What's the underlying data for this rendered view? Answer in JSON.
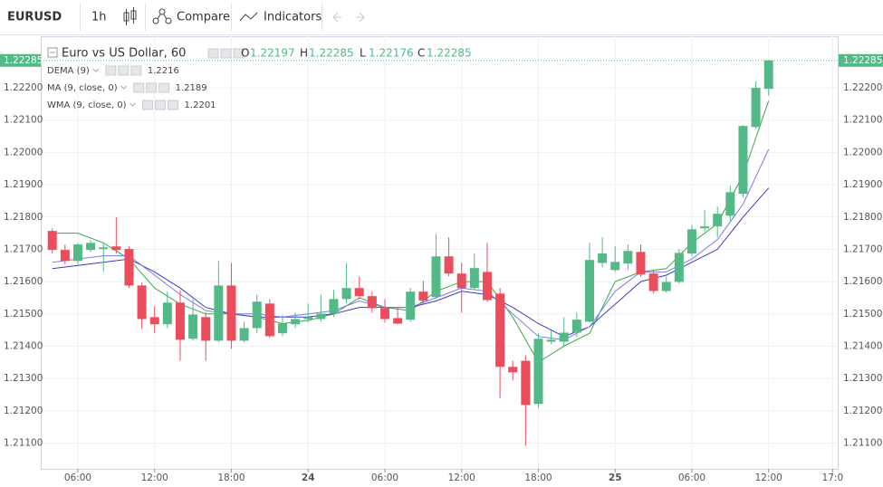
{
  "toolbar": {
    "symbol": "EURUSD",
    "interval": "1h",
    "compare": "Compare",
    "indicators": "Indicators"
  },
  "chart_data": {
    "type": "candlestick",
    "title": "Euro vs US Dollar, 60",
    "ohlc_labels": [
      "O",
      "H",
      "L",
      "C"
    ],
    "up_color": "#53b987",
    "down_color": "#eb4d5c",
    "x": [
      4,
      5,
      6,
      7,
      8,
      9,
      10,
      11,
      12,
      13,
      14,
      15,
      16,
      17,
      18,
      19,
      20,
      21,
      22,
      23,
      24,
      25,
      26,
      27,
      28,
      29,
      30,
      31,
      32,
      33,
      34,
      35,
      36,
      37,
      38,
      39,
      40,
      41,
      42,
      43,
      44,
      45,
      46,
      47,
      48,
      49,
      50,
      51,
      52,
      53,
      54,
      55,
      56,
      57,
      58,
      59,
      60
    ],
    "open": [
      1.21757,
      1.21698,
      1.21664,
      1.21698,
      1.21701,
      1.21709,
      1.21701,
      1.21588,
      1.2149,
      1.21468,
      1.21535,
      1.21423,
      1.2149,
      1.21417,
      1.21588,
      1.21417,
      1.21456,
      1.21532,
      1.2144,
      1.21468,
      1.21484,
      1.21484,
      1.21501,
      1.21546,
      1.2158,
      1.21555,
      1.21518,
      1.21487,
      1.21482,
      1.21569,
      1.21552,
      1.21678,
      1.21625,
      1.2158,
      1.2163,
      1.21563,
      1.21336,
      1.21355,
      1.21221,
      1.21414,
      1.21414,
      1.21442,
      1.21476,
      1.21658,
      1.21636,
      1.21656,
      1.21692,
      1.21625,
      1.21571,
      1.21599,
      1.21687,
      1.21765,
      1.21771,
      1.21804,
      1.21872,
      1.22079,
      1.22197
    ],
    "high": [
      1.21765,
      1.21715,
      1.2172,
      1.21729,
      1.2172,
      1.21799,
      1.21709,
      1.21597,
      1.21524,
      1.21569,
      1.21574,
      1.21546,
      1.21504,
      1.21664,
      1.21658,
      1.21476,
      1.2156,
      1.21546,
      1.21496,
      1.21504,
      1.21532,
      1.2156,
      1.21574,
      1.21658,
      1.21616,
      1.21569,
      1.21546,
      1.21518,
      1.2158,
      1.21602,
      1.21748,
      1.21737,
      1.21658,
      1.21687,
      1.2172,
      1.2158,
      1.21355,
      1.21372,
      1.2144,
      1.21448,
      1.2149,
      1.21504,
      1.2172,
      1.21737,
      1.21709,
      1.21715,
      1.21715,
      1.21636,
      1.21616,
      1.21701,
      1.21776,
      1.21821,
      1.21832,
      1.21897,
      1.22085,
      1.2222,
      1.22285
    ],
    "low": [
      1.21687,
      1.21653,
      1.21653,
      1.21692,
      1.2163,
      1.21687,
      1.2158,
      1.21454,
      1.2144,
      1.21456,
      1.21355,
      1.21417,
      1.21355,
      1.21412,
      1.21392,
      1.21412,
      1.2144,
      1.21426,
      1.21431,
      1.21456,
      1.21473,
      1.21476,
      1.2149,
      1.21532,
      1.21546,
      1.21504,
      1.21473,
      1.21468,
      1.21476,
      1.21532,
      1.21546,
      1.21616,
      1.21504,
      1.21574,
      1.21538,
      1.21238,
      1.21294,
      1.21092,
      1.2121,
      1.21406,
      1.214,
      1.21428,
      1.21473,
      1.21644,
      1.2163,
      1.21636,
      1.21614,
      1.21563,
      1.21566,
      1.21594,
      1.21678,
      1.21754,
      1.21737,
      1.21785,
      1.2186,
      1.22074,
      1.22176
    ],
    "close": [
      1.21698,
      1.21664,
      1.21715,
      1.2172,
      1.21706,
      1.21698,
      1.21588,
      1.21484,
      1.21468,
      1.21535,
      1.2142,
      1.21498,
      1.21417,
      1.21588,
      1.21417,
      1.21456,
      1.21538,
      1.21431,
      1.2147,
      1.21484,
      1.2149,
      1.21501,
      1.21546,
      1.2158,
      1.21555,
      1.21518,
      1.21484,
      1.2147,
      1.21569,
      1.21541,
      1.21678,
      1.21625,
      1.2158,
      1.21642,
      1.21543,
      1.21336,
      1.21319,
      1.21218,
      1.21423,
      1.2142,
      1.21442,
      1.21482,
      1.21667,
      1.21687,
      1.21661,
      1.21695,
      1.21622,
      1.21571,
      1.21599,
      1.21689,
      1.21762,
      1.21771,
      1.2181,
      1.21877,
      1.22082,
      1.222,
      1.22285
    ],
    "indicators": [
      {
        "name": "DEMA (9)",
        "color": "#3aa845",
        "x": [
          4,
          6,
          8,
          10,
          12,
          14,
          16,
          18,
          20,
          22,
          24,
          26,
          28,
          30,
          32,
          34,
          36,
          38,
          40,
          42,
          44,
          46,
          48,
          50,
          52,
          54,
          56,
          58,
          60
        ],
        "values": [
          1.2175,
          1.2175,
          1.2172,
          1.2167,
          1.2158,
          1.2153,
          1.215,
          1.215,
          1.2149,
          1.2147,
          1.2148,
          1.215,
          1.2155,
          1.2152,
          1.2151,
          1.2157,
          1.216,
          1.216,
          1.2149,
          1.2135,
          1.214,
          1.2144,
          1.216,
          1.2163,
          1.2164,
          1.2172,
          1.2178,
          1.2193,
          1.2216
        ]
      },
      {
        "name": "MA (9, close, 0)",
        "color": "#3b3bc8",
        "x": [
          4,
          6,
          8,
          10,
          12,
          14,
          16,
          18,
          20,
          22,
          24,
          26,
          28,
          30,
          32,
          34,
          36,
          38,
          40,
          42,
          44,
          46,
          48,
          50,
          52,
          54,
          56,
          58,
          60
        ],
        "values": [
          1.2164,
          1.2165,
          1.2166,
          1.2167,
          1.2163,
          1.2158,
          1.2152,
          1.215,
          1.2149,
          1.2149,
          1.2149,
          1.215,
          1.2152,
          1.2152,
          1.2152,
          1.2154,
          1.2157,
          1.2156,
          1.2152,
          1.2147,
          1.2143,
          1.2146,
          1.2153,
          1.216,
          1.2162,
          1.2166,
          1.217,
          1.218,
          1.2189
        ]
      },
      {
        "name": "WMA (9, close, 0)",
        "color": "#7a7ae6",
        "x": [
          4,
          6,
          8,
          10,
          12,
          14,
          16,
          18,
          20,
          22,
          24,
          26,
          28,
          30,
          32,
          34,
          36,
          38,
          40,
          42,
          44,
          46,
          48,
          50,
          52,
          54,
          56,
          58,
          60
        ],
        "values": [
          1.2166,
          1.2167,
          1.2168,
          1.2168,
          1.2162,
          1.2156,
          1.2151,
          1.215,
          1.215,
          1.2149,
          1.215,
          1.2151,
          1.2154,
          1.2152,
          1.2152,
          1.2155,
          1.2158,
          1.2157,
          1.215,
          1.2143,
          1.2142,
          1.2146,
          1.2157,
          1.2163,
          1.2163,
          1.2167,
          1.2173,
          1.2184,
          1.2201
        ]
      }
    ],
    "xlim": [
      3.1,
      65.4
    ],
    "ylim": [
      1.2102,
      1.2236
    ],
    "xticks": [
      {
        "value": 6,
        "label": "06:00"
      },
      {
        "value": 12,
        "label": "12:00"
      },
      {
        "value": 18,
        "label": "18:00"
      },
      24,
      {
        "value": 30,
        "label": "06:00"
      },
      {
        "value": 36,
        "label": "12:00"
      },
      {
        "value": 42,
        "label": "18:00"
      },
      {
        "value": 48,
        "label": "25"
      },
      {
        "value": 54,
        "label": "06:00"
      },
      {
        "value": 60,
        "label": "12:00"
      },
      {
        "value": 65,
        "label": "17:0"
      }
    ],
    "yticks": [
      {
        "value": 1.211,
        "label": "1.21100"
      },
      {
        "value": 1.212,
        "label": "1.21200"
      },
      {
        "value": 1.213,
        "label": "1.21300"
      },
      {
        "value": 1.214,
        "label": "1.21400"
      },
      {
        "value": 1.215,
        "label": "1.21500"
      },
      {
        "value": 1.216,
        "label": "1.21600"
      },
      {
        "value": 1.217,
        "label": "1.21700"
      },
      {
        "value": 1.218,
        "label": "1.21800"
      },
      {
        "value": 1.219,
        "label": "1.21900"
      },
      {
        "value": 1.22,
        "label": "1.22000"
      },
      {
        "value": 1.221,
        "label": "1.22100"
      },
      {
        "value": 1.222,
        "label": "1.22200"
      }
    ],
    "grid": true
  }
}
